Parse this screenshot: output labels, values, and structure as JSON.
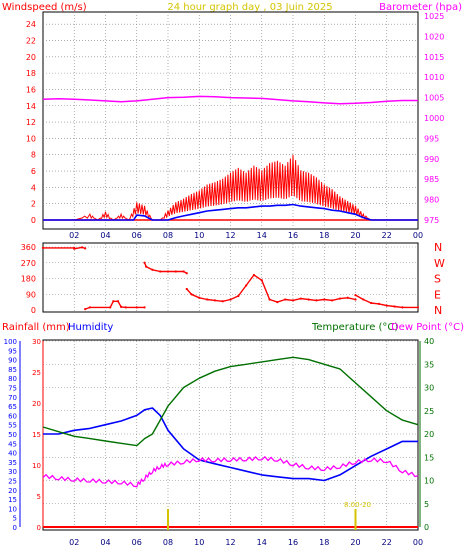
{
  "title": "24 hour graph day , 03 Juin 2025",
  "colors": {
    "frame": "#000000",
    "grid": "#808080",
    "wind_speed": "#ff0000",
    "wind_avg": "#0000ff",
    "barometer": "#ff00ff",
    "direction": "#ff0000",
    "humidity": "#0000ff",
    "temperature": "#007000",
    "dew_point": "#ff00ff",
    "rain": "#ff0000",
    "sun_marker": "#d4c400",
    "axis_wind": "#ff0000",
    "axis_baro": "#ff00ff",
    "axis_rain": "#0000ff",
    "axis_rainmm": "#ff0000",
    "axis_temp": "#007000",
    "axis_dir": "#ff0000"
  },
  "x_ticks": [
    "02",
    "04",
    "06",
    "08",
    "10",
    "12",
    "14",
    "16",
    "18",
    "20",
    "22",
    "00"
  ],
  "chart_data": [
    {
      "type": "line",
      "panel": "wind_barometer",
      "title": "24 hour graph day , 03 Juin 2025",
      "x_unit": "hours",
      "xlim": [
        0,
        24
      ],
      "left_axis": {
        "label": "Windspeed (m/s)",
        "ylim": [
          0,
          25
        ],
        "ticks": [
          "0",
          "2",
          "4",
          "6",
          "8",
          "10",
          "12",
          "14",
          "16",
          "18",
          "20",
          "22",
          "24"
        ]
      },
      "right_axis": {
        "label": "Barometer (hpa)",
        "ylim": [
          975,
          1025
        ],
        "ticks": [
          "975",
          "980",
          "985",
          "990",
          "995",
          "1000",
          "1005",
          "1010",
          "1015",
          "1020",
          "1025"
        ]
      },
      "series": [
        {
          "axis": "right",
          "x": [
            0,
            1,
            2,
            3,
            4,
            5,
            6,
            7,
            8,
            9,
            10,
            11,
            12,
            13,
            14,
            15,
            16,
            17,
            18,
            19,
            20,
            21,
            22,
            23,
            24
          ],
          "values": [
            1004.6,
            1004.7,
            1004.6,
            1004.4,
            1004.2,
            1004.0,
            1004.2,
            1004.6,
            1005.0,
            1005.1,
            1005.3,
            1005.2,
            1005.0,
            1004.9,
            1004.8,
            1004.5,
            1004.2,
            1004.0,
            1003.7,
            1003.5,
            1003.6,
            1003.8,
            1004.1,
            1004.3,
            1004.3
          ]
        },
        {
          "axis": "left",
          "x": [
            0,
            2,
            3,
            3.5,
            4,
            4.5,
            5,
            5.5,
            6,
            6.5,
            7,
            7.5,
            8,
            8.5,
            9,
            9.5,
            10,
            10.5,
            11,
            11.5,
            12,
            12.5,
            13,
            13.5,
            14,
            14.5,
            15,
            15.5,
            16,
            16.5,
            17,
            17.5,
            18,
            18.5,
            19,
            19.5,
            20,
            20.5,
            21,
            22,
            23,
            24
          ],
          "values": [
            0,
            0,
            0.5,
            0,
            0.7,
            0,
            0.5,
            0,
            1.5,
            1.2,
            0,
            0,
            0.8,
            1.5,
            1.8,
            2.2,
            2.5,
            3.0,
            3.2,
            3.5,
            4.0,
            4.4,
            4.0,
            4.6,
            4.2,
            4.8,
            5.0,
            4.6,
            5.5,
            4.2,
            4.0,
            3.6,
            3.0,
            2.6,
            2.0,
            1.6,
            1.2,
            0.5,
            0,
            0,
            0,
            0
          ]
        },
        {
          "axis": "left",
          "x": [
            0,
            5.8,
            6,
            6.5,
            7,
            7.5,
            8,
            8.5,
            9,
            9.5,
            10,
            10.5,
            11,
            11.5,
            12,
            12.5,
            13,
            13.5,
            14,
            14.5,
            15,
            15.5,
            16,
            16.5,
            17,
            17.5,
            18,
            18.5,
            19,
            19.5,
            20,
            20.5,
            21,
            24
          ],
          "values": [
            0,
            0,
            0.6,
            0.5,
            0,
            0,
            0,
            0.3,
            0.5,
            0.7,
            0.9,
            1.1,
            1.2,
            1.3,
            1.4,
            1.5,
            1.5,
            1.6,
            1.7,
            1.7,
            1.8,
            1.8,
            1.9,
            1.7,
            1.6,
            1.5,
            1.4,
            1.2,
            1.1,
            0.9,
            0.7,
            0.3,
            0,
            0
          ]
        }
      ]
    },
    {
      "type": "scatter",
      "panel": "wind_direction",
      "x_unit": "hours",
      "xlim": [
        0,
        24
      ],
      "ylim": [
        0,
        360
      ],
      "left_ticks": [
        "0",
        "90",
        "180",
        "270",
        "360"
      ],
      "right_labels": [
        "N",
        "E",
        "S",
        "W",
        "N"
      ],
      "segments": [
        {
          "x": [
            0,
            2.0,
            2.0,
            2.5,
            2.7
          ],
          "values": [
            355,
            355,
            350,
            358,
            352
          ]
        },
        {
          "x": [
            2.7,
            3.0,
            4.3,
            4.5,
            4.8,
            5.0,
            5.3,
            6.0,
            6.5
          ],
          "values": [
            5,
            15,
            15,
            50,
            50,
            18,
            15,
            15,
            15
          ]
        },
        {
          "x": [
            6.5,
            6.6,
            7.0,
            7.5,
            8.0,
            8.5,
            9.0,
            9.2
          ],
          "values": [
            270,
            248,
            230,
            220,
            220,
            220,
            220,
            210
          ]
        },
        {
          "x": [
            9.2,
            9.5,
            10,
            10.5,
            11,
            11.5,
            12,
            12.5,
            13,
            13.5,
            14,
            14.5,
            15,
            15.5,
            16,
            16.5,
            17,
            17.5,
            18,
            18.5,
            19,
            19.5,
            20
          ],
          "values": [
            120,
            90,
            70,
            60,
            55,
            50,
            60,
            80,
            140,
            200,
            170,
            60,
            45,
            60,
            55,
            65,
            60,
            55,
            60,
            55,
            65,
            70,
            60
          ]
        },
        {
          "x": [
            20,
            20.5,
            21,
            21.5,
            22,
            22.5,
            23,
            24
          ],
          "values": [
            85,
            60,
            40,
            35,
            25,
            20,
            15,
            15
          ]
        }
      ]
    },
    {
      "type": "line",
      "panel": "temp_humidity_rain",
      "x_unit": "hours",
      "xlim": [
        0,
        24
      ],
      "left_axes": [
        {
          "label": "Humidity",
          "ylim": [
            0,
            100
          ],
          "ticks": [
            "0",
            "5",
            "10",
            "15",
            "20",
            "25",
            "30",
            "35",
            "40",
            "45",
            "50",
            "55",
            "60",
            "65",
            "70",
            "75",
            "80",
            "85",
            "90",
            "95",
            "100"
          ]
        },
        {
          "label": "Rainfall (mm)",
          "ylim": [
            0,
            30
          ],
          "ticks": [
            "0",
            "5",
            "10",
            "15",
            "20",
            "25",
            "30"
          ]
        }
      ],
      "right_axis": {
        "label": "Temperature (°C)",
        "ylim": [
          0,
          40
        ],
        "ticks": [
          "0",
          "5",
          "10",
          "15",
          "20",
          "25",
          "30",
          "35",
          "40"
        ]
      },
      "series": [
        {
          "name": "Humidity",
          "axis": "humidity",
          "x": [
            0,
            1,
            2,
            3,
            4,
            5,
            6,
            6.5,
            7,
            7.5,
            8,
            9,
            10,
            11,
            12,
            13,
            14,
            15,
            16,
            17,
            18,
            19,
            20,
            21,
            22,
            23,
            24
          ],
          "values": [
            50,
            50,
            52,
            53,
            55,
            57,
            60,
            63,
            64,
            60,
            52,
            42,
            36,
            34,
            32,
            30,
            28,
            27,
            26,
            26,
            25,
            28,
            33,
            38,
            42,
            46,
            46
          ]
        },
        {
          "name": "Temperature (°C)",
          "axis": "right",
          "x": [
            0,
            1,
            2,
            3,
            4,
            5,
            6,
            6.5,
            7,
            7.5,
            8,
            9,
            10,
            11,
            12,
            13,
            14,
            15,
            16,
            17,
            18,
            19,
            20,
            21,
            22,
            23,
            24
          ],
          "values": [
            21.5,
            20.5,
            19.5,
            19,
            18.5,
            18,
            17.5,
            19,
            20,
            23,
            26,
            30,
            32,
            33.5,
            34.5,
            35,
            35.5,
            36,
            36.5,
            36,
            35,
            34,
            31,
            28,
            25,
            23,
            22
          ]
        },
        {
          "name": "Dew Point (°C)",
          "axis": "right",
          "x": [
            0,
            1,
            2,
            3,
            4,
            5,
            6,
            6.5,
            7,
            7.5,
            8,
            9,
            10,
            11,
            12,
            13,
            14,
            15,
            16,
            17,
            18,
            19,
            20,
            21,
            22,
            23,
            24
          ],
          "values": [
            11,
            10.5,
            10.2,
            10,
            9.8,
            9.6,
            9,
            10.5,
            12,
            13,
            13.5,
            14,
            14.5,
            14.4,
            14.5,
            14.6,
            14.8,
            14.5,
            13.5,
            12.8,
            12.5,
            13,
            14,
            14.5,
            14.2,
            12,
            11
          ]
        },
        {
          "name": "Rainfall (mm)",
          "axis": "rain",
          "x": [
            0,
            24
          ],
          "values": [
            0,
            0
          ]
        }
      ],
      "markers": {
        "sun_rise_hour": 8.0,
        "sun_set_hour": 20.0,
        "sun_label": "8.00-20"
      }
    }
  ],
  "labels": {
    "windspeed": "Windspeed (m/s)",
    "barometer": "Barometer (hpa)",
    "rainfall": "Rainfall (mm)",
    "humidity": "Humidity",
    "temperature": "Temperature (°C)",
    "dew_point": "Dew Point (°C)",
    "sun_label": "8.00-20"
  }
}
